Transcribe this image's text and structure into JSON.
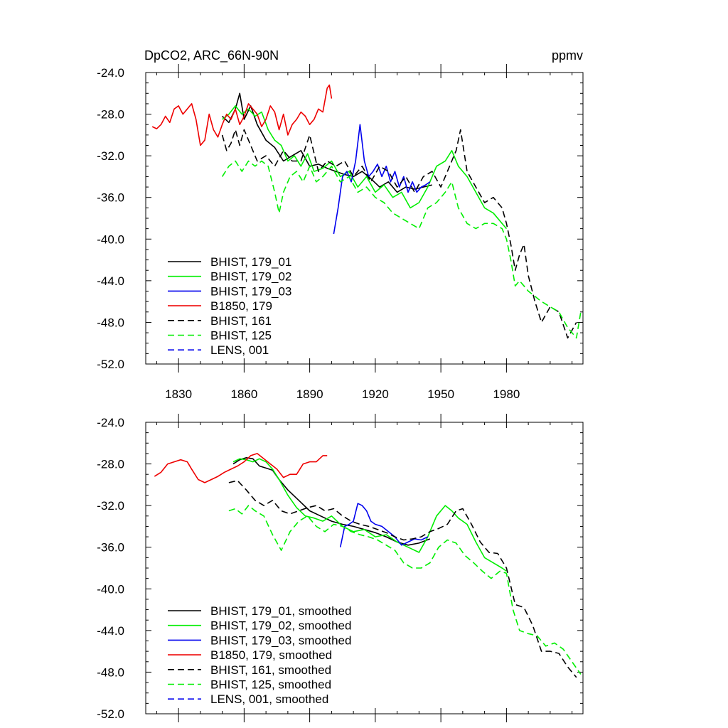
{
  "chart_data": [
    {
      "type": "line",
      "title": "DpCO2, ARC_66N-90N",
      "units": "ppmv",
      "xlabel": "",
      "ylabel": "",
      "xlim": [
        1815,
        2015
      ],
      "ylim": [
        -52,
        -24
      ],
      "xticks": [
        1830,
        1860,
        1890,
        1920,
        1950,
        1980
      ],
      "yticks": [
        -24,
        -28,
        -32,
        -36,
        -40,
        -44,
        -48,
        -52
      ],
      "ytick_labels": [
        "-24.0",
        "-28.0",
        "-32.0",
        "-36.0",
        "-40.0",
        "-44.0",
        "-48.0",
        "-52.0"
      ],
      "xtick_labels": [
        "1830",
        "1860",
        "1890",
        "1920",
        "1950",
        "1980"
      ],
      "legend_position": "bottom-left",
      "series": [
        {
          "name": "BHIST, 179_01",
          "color": "#000000",
          "dash": "solid",
          "x": [
            1850,
            1853,
            1856,
            1858,
            1860,
            1863,
            1866,
            1870,
            1874,
            1878,
            1882,
            1886,
            1890,
            1894,
            1898,
            1902,
            1906,
            1910,
            1914,
            1918,
            1922,
            1926,
            1930,
            1934,
            1938,
            1942,
            1946
          ],
          "y": [
            -28.2,
            -28.8,
            -27.5,
            -26.0,
            -28.5,
            -27.2,
            -29.0,
            -30.5,
            -31.2,
            -32.5,
            -32.0,
            -31.5,
            -33.0,
            -32.8,
            -33.2,
            -33.5,
            -33.8,
            -34.0,
            -33.5,
            -34.2,
            -35.0,
            -34.5,
            -35.5,
            -35.0,
            -35.2,
            -35.0,
            -34.8
          ]
        },
        {
          "name": "BHIST, 179_02",
          "color": "#00ee00",
          "dash": "solid",
          "x": [
            1850,
            1853,
            1856,
            1859,
            1862,
            1865,
            1868,
            1871,
            1874,
            1877,
            1880,
            1883,
            1886,
            1889,
            1892,
            1896,
            1900,
            1904,
            1908,
            1912,
            1916,
            1920,
            1924,
            1928,
            1932,
            1936,
            1940,
            1944,
            1948,
            1952,
            1955,
            1958,
            1962,
            1966,
            1970,
            1974,
            1978,
            1980
          ],
          "y": [
            -28.5,
            -28.0,
            -27.2,
            -28.0,
            -27.5,
            -28.2,
            -27.8,
            -29.5,
            -30.5,
            -31.0,
            -32.5,
            -32.0,
            -33.0,
            -31.8,
            -33.5,
            -33.2,
            -32.5,
            -34.0,
            -33.5,
            -35.0,
            -34.0,
            -35.5,
            -34.8,
            -36.0,
            -35.5,
            -37.0,
            -36.5,
            -35.0,
            -33.0,
            -32.5,
            -31.5,
            -33.0,
            -34.0,
            -35.5,
            -37.0,
            -37.5,
            -38.5,
            -39.0
          ]
        },
        {
          "name": "BHIST, 179_03",
          "color": "#0000ee",
          "dash": "solid",
          "x": [
            1901,
            1903,
            1905,
            1907,
            1909,
            1911,
            1913,
            1915,
            1917,
            1919,
            1921,
            1923,
            1925,
            1927,
            1929,
            1931,
            1933,
            1935,
            1937,
            1939,
            1941,
            1943,
            1945
          ],
          "y": [
            -39.5,
            -37.0,
            -34.0,
            -33.5,
            -34.5,
            -32.5,
            -29.0,
            -32.5,
            -34.0,
            -33.5,
            -32.8,
            -34.0,
            -33.0,
            -34.5,
            -33.5,
            -35.0,
            -34.0,
            -35.5,
            -34.5,
            -35.5,
            -35.0,
            -34.8,
            -34.5
          ]
        },
        {
          "name": "B1850, 179",
          "color": "#ee0000",
          "dash": "solid",
          "x": [
            1818,
            1820,
            1822,
            1824,
            1826,
            1828,
            1830,
            1832,
            1834,
            1836,
            1838,
            1840,
            1842,
            1844,
            1846,
            1848,
            1850,
            1852,
            1854,
            1856,
            1858,
            1860,
            1862,
            1864,
            1866,
            1868,
            1870,
            1872,
            1874,
            1876,
            1878,
            1880,
            1882,
            1884,
            1886,
            1888,
            1890,
            1892,
            1894,
            1896,
            1898,
            1899,
            1900
          ],
          "y": [
            -29.2,
            -29.4,
            -29.0,
            -28.2,
            -28.8,
            -27.5,
            -27.2,
            -28.0,
            -27.5,
            -27.0,
            -28.5,
            -31.0,
            -30.5,
            -28.0,
            -29.5,
            -30.2,
            -29.0,
            -28.0,
            -28.5,
            -27.5,
            -29.0,
            -28.2,
            -27.0,
            -27.5,
            -28.0,
            -29.2,
            -28.5,
            -27.2,
            -27.8,
            -29.5,
            -28.0,
            -30.0,
            -29.0,
            -28.5,
            -27.8,
            -28.2,
            -29.0,
            -28.5,
            -27.5,
            -27.8,
            -25.5,
            -25.2,
            -26.5
          ]
        },
        {
          "name": "BHIST, 161",
          "color": "#000000",
          "dash": "dashed",
          "x": [
            1850,
            1852,
            1854,
            1856,
            1858,
            1860,
            1863,
            1866,
            1870,
            1874,
            1878,
            1882,
            1886,
            1890,
            1894,
            1898,
            1902,
            1906,
            1910,
            1914,
            1918,
            1922,
            1926,
            1930,
            1934,
            1938,
            1942,
            1946,
            1950,
            1954,
            1957,
            1959,
            1962,
            1966,
            1970,
            1974,
            1978,
            1980,
            1982,
            1984,
            1986,
            1988,
            1990,
            1993,
            1996,
            2000,
            2004,
            2008,
            2012
          ],
          "y": [
            -30.0,
            -31.5,
            -30.8,
            -29.5,
            -31.0,
            -29.5,
            -31.0,
            -32.5,
            -32.0,
            -33.0,
            -31.5,
            -32.5,
            -32.5,
            -30.0,
            -33.5,
            -32.5,
            -33.0,
            -32.5,
            -34.0,
            -33.0,
            -34.5,
            -33.0,
            -33.5,
            -35.0,
            -34.0,
            -35.5,
            -34.0,
            -33.5,
            -35.0,
            -33.0,
            -31.5,
            -29.5,
            -33.5,
            -35.0,
            -36.5,
            -36.0,
            -37.0,
            -38.5,
            -40.5,
            -43.0,
            -41.5,
            -40.5,
            -43.5,
            -46.0,
            -48.0,
            -46.5,
            -47.0,
            -49.5,
            -48.0
          ]
        },
        {
          "name": "BHIST, 125",
          "color": "#00ee00",
          "dash": "dashed",
          "x": [
            1850,
            1853,
            1856,
            1859,
            1862,
            1865,
            1868,
            1871,
            1874,
            1876,
            1878,
            1881,
            1884,
            1887,
            1890,
            1893,
            1896,
            1900,
            1904,
            1908,
            1912,
            1916,
            1920,
            1924,
            1928,
            1932,
            1936,
            1940,
            1944,
            1948,
            1952,
            1955,
            1958,
            1962,
            1966,
            1970,
            1974,
            1978,
            1980,
            1982,
            1984,
            1986,
            1988,
            1990,
            1993,
            1996,
            2000,
            2004,
            2008,
            2012,
            2014
          ],
          "y": [
            -34.0,
            -33.0,
            -32.5,
            -33.5,
            -32.5,
            -33.0,
            -32.5,
            -33.0,
            -35.5,
            -37.5,
            -35.5,
            -34.0,
            -33.5,
            -34.5,
            -33.0,
            -34.5,
            -34.0,
            -33.0,
            -34.5,
            -34.0,
            -35.5,
            -35.0,
            -36.0,
            -36.5,
            -37.5,
            -38.0,
            -38.5,
            -39.0,
            -37.0,
            -36.5,
            -35.5,
            -34.5,
            -37.0,
            -38.5,
            -39.0,
            -38.5,
            -38.5,
            -39.0,
            -40.0,
            -42.0,
            -44.5,
            -44.0,
            -44.5,
            -45.0,
            -45.5,
            -46.0,
            -46.5,
            -47.0,
            -48.5,
            -49.5,
            -47.0
          ]
        },
        {
          "name": "LENS, 001",
          "color": "#0000ee",
          "dash": "dashed",
          "x": [],
          "y": []
        }
      ]
    },
    {
      "type": "line",
      "title": "",
      "xlabel": "",
      "ylabel": "",
      "xlim": [
        1815,
        2015
      ],
      "ylim": [
        -52,
        -24
      ],
      "xticks": [
        1830,
        1860,
        1890,
        1920,
        1950,
        1980
      ],
      "yticks": [
        -24,
        -28,
        -32,
        -36,
        -40,
        -44,
        -48,
        -52
      ],
      "ytick_labels": [
        "-24.0",
        "-28.0",
        "-32.0",
        "-36.0",
        "-40.0",
        "-44.0",
        "-48.0",
        "-52.0"
      ],
      "legend_position": "bottom-left",
      "series": [
        {
          "name": "BHIST, 179_01, smoothed",
          "color": "#000000",
          "dash": "solid",
          "x": [
            1855,
            1858,
            1861,
            1864,
            1867,
            1870,
            1873,
            1876,
            1880,
            1885,
            1890,
            1895,
            1900,
            1905,
            1910,
            1915,
            1920,
            1925,
            1930,
            1935,
            1940,
            1945
          ],
          "y": [
            -28.0,
            -27.6,
            -27.4,
            -27.5,
            -28.2,
            -28.4,
            -28.6,
            -29.5,
            -30.5,
            -31.5,
            -32.5,
            -33.0,
            -33.5,
            -33.8,
            -34.0,
            -34.3,
            -34.6,
            -35.0,
            -35.5,
            -35.8,
            -35.6,
            -35.2
          ]
        },
        {
          "name": "BHIST, 179_02, smoothed",
          "color": "#00ee00",
          "dash": "solid",
          "x": [
            1855,
            1858,
            1861,
            1864,
            1867,
            1870,
            1873,
            1876,
            1880,
            1884,
            1888,
            1892,
            1896,
            1900,
            1905,
            1910,
            1915,
            1920,
            1925,
            1930,
            1935,
            1940,
            1944,
            1948,
            1952,
            1955,
            1958,
            1962,
            1966,
            1970,
            1974,
            1978,
            1980
          ],
          "y": [
            -27.8,
            -27.5,
            -27.6,
            -27.8,
            -27.5,
            -27.8,
            -28.5,
            -29.5,
            -31.0,
            -32.2,
            -33.0,
            -33.2,
            -33.5,
            -33.0,
            -34.0,
            -34.5,
            -34.3,
            -35.0,
            -34.8,
            -35.5,
            -36.0,
            -36.5,
            -35.0,
            -33.0,
            -32.0,
            -32.5,
            -33.2,
            -33.8,
            -35.5,
            -37.0,
            -37.5,
            -38.0,
            -38.3
          ]
        },
        {
          "name": "BHIST, 179_03, smoothed",
          "color": "#0000ee",
          "dash": "solid",
          "x": [
            1904,
            1906,
            1908,
            1910,
            1912,
            1914,
            1916,
            1918,
            1920,
            1923,
            1926,
            1929,
            1932,
            1935,
            1938,
            1941,
            1944
          ],
          "y": [
            -36.0,
            -34.0,
            -33.8,
            -33.5,
            -31.8,
            -32.0,
            -32.5,
            -33.5,
            -33.8,
            -34.0,
            -34.5,
            -35.0,
            -35.8,
            -35.5,
            -35.2,
            -35.3,
            -35.0
          ]
        },
        {
          "name": "B1850, 179, smoothed",
          "color": "#ee0000",
          "dash": "solid",
          "x": [
            1819,
            1822,
            1825,
            1828,
            1831,
            1834,
            1836,
            1839,
            1842,
            1845,
            1848,
            1851,
            1854,
            1857,
            1860,
            1863,
            1866,
            1869,
            1872,
            1875,
            1878,
            1881,
            1884,
            1887,
            1890,
            1893,
            1896,
            1898
          ],
          "y": [
            -29.2,
            -28.8,
            -28.0,
            -27.8,
            -27.6,
            -27.8,
            -28.5,
            -29.5,
            -29.8,
            -29.5,
            -29.2,
            -28.8,
            -28.5,
            -28.2,
            -27.8,
            -27.2,
            -27.0,
            -27.5,
            -28.0,
            -28.5,
            -29.3,
            -29.0,
            -29.0,
            -28.0,
            -27.8,
            -27.8,
            -27.2,
            -27.2
          ]
        },
        {
          "name": "BHIST, 161, smoothed",
          "color": "#000000",
          "dash": "dashed",
          "x": [
            1853,
            1857,
            1861,
            1865,
            1869,
            1873,
            1877,
            1881,
            1885,
            1889,
            1893,
            1897,
            1901,
            1905,
            1909,
            1913,
            1917,
            1921,
            1925,
            1929,
            1933,
            1937,
            1941,
            1945,
            1949,
            1953,
            1957,
            1960,
            1964,
            1968,
            1972,
            1976,
            1980,
            1984,
            1988,
            1992,
            1996,
            2000,
            2004,
            2008,
            2012
          ],
          "y": [
            -29.8,
            -29.6,
            -30.5,
            -31.5,
            -32.0,
            -31.5,
            -32.5,
            -32.8,
            -32.5,
            -32.2,
            -32.0,
            -32.5,
            -32.3,
            -33.0,
            -33.5,
            -33.8,
            -34.0,
            -34.3,
            -34.6,
            -35.0,
            -35.3,
            -35.2,
            -35.0,
            -34.5,
            -34.2,
            -33.8,
            -32.5,
            -32.3,
            -33.8,
            -35.5,
            -36.5,
            -36.6,
            -38.0,
            -41.5,
            -41.8,
            -43.5,
            -46.0,
            -46.0,
            -46.2,
            -47.5,
            -48.5
          ]
        },
        {
          "name": "BHIST, 125, smoothed",
          "color": "#00ee00",
          "dash": "dashed",
          "x": [
            1853,
            1856,
            1859,
            1862,
            1865,
            1869,
            1873,
            1877,
            1881,
            1885,
            1889,
            1893,
            1897,
            1901,
            1905,
            1909,
            1913,
            1917,
            1921,
            1925,
            1929,
            1933,
            1937,
            1941,
            1945,
            1949,
            1953,
            1957,
            1961,
            1965,
            1969,
            1973,
            1977,
            1980,
            1983,
            1986,
            1990,
            1994,
            1998,
            2002,
            2006,
            2010,
            2014
          ],
          "y": [
            -32.5,
            -32.3,
            -32.8,
            -32.0,
            -32.5,
            -33.0,
            -34.8,
            -36.3,
            -34.5,
            -33.5,
            -33.0,
            -34.0,
            -34.5,
            -33.8,
            -34.0,
            -34.5,
            -34.8,
            -35.0,
            -35.3,
            -35.8,
            -36.3,
            -37.5,
            -38.0,
            -38.0,
            -37.5,
            -36.0,
            -35.3,
            -35.6,
            -36.8,
            -37.5,
            -38.3,
            -39.0,
            -38.3,
            -38.5,
            -42.0,
            -44.0,
            -44.3,
            -44.5,
            -45.5,
            -45.2,
            -45.8,
            -47.0,
            -48.2
          ]
        },
        {
          "name": "LENS, 001, smoothed",
          "color": "#0000ee",
          "dash": "dashed",
          "x": [],
          "y": []
        }
      ]
    }
  ]
}
